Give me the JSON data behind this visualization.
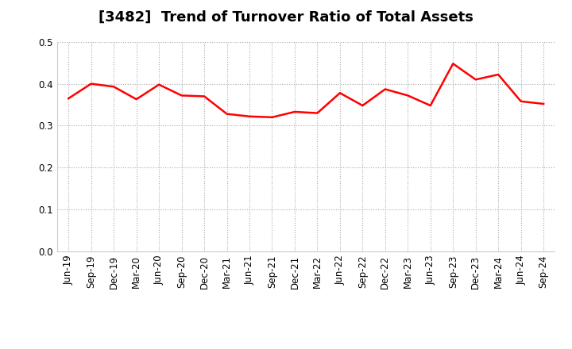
{
  "title": "[3482]  Trend of Turnover Ratio of Total Assets",
  "labels": [
    "Jun-19",
    "Sep-19",
    "Dec-19",
    "Mar-20",
    "Jun-20",
    "Sep-20",
    "Dec-20",
    "Mar-21",
    "Jun-21",
    "Sep-21",
    "Dec-21",
    "Mar-22",
    "Jun-22",
    "Sep-22",
    "Dec-22",
    "Mar-23",
    "Jun-23",
    "Sep-23",
    "Dec-23",
    "Mar-24",
    "Jun-24",
    "Sep-24"
  ],
  "values": [
    0.365,
    0.4,
    0.393,
    0.363,
    0.398,
    0.372,
    0.37,
    0.328,
    0.322,
    0.32,
    0.333,
    0.33,
    0.378,
    0.348,
    0.387,
    0.372,
    0.348,
    0.448,
    0.41,
    0.422,
    0.358,
    0.352
  ],
  "line_color": "#FF0000",
  "line_width": 1.8,
  "ylim": [
    0.0,
    0.5
  ],
  "yticks": [
    0.0,
    0.1,
    0.2,
    0.3,
    0.4,
    0.5
  ],
  "grid_color": "#aaaaaa",
  "grid_style": "dotted",
  "background_color": "#ffffff",
  "title_fontsize": 13,
  "tick_fontsize": 8.5
}
